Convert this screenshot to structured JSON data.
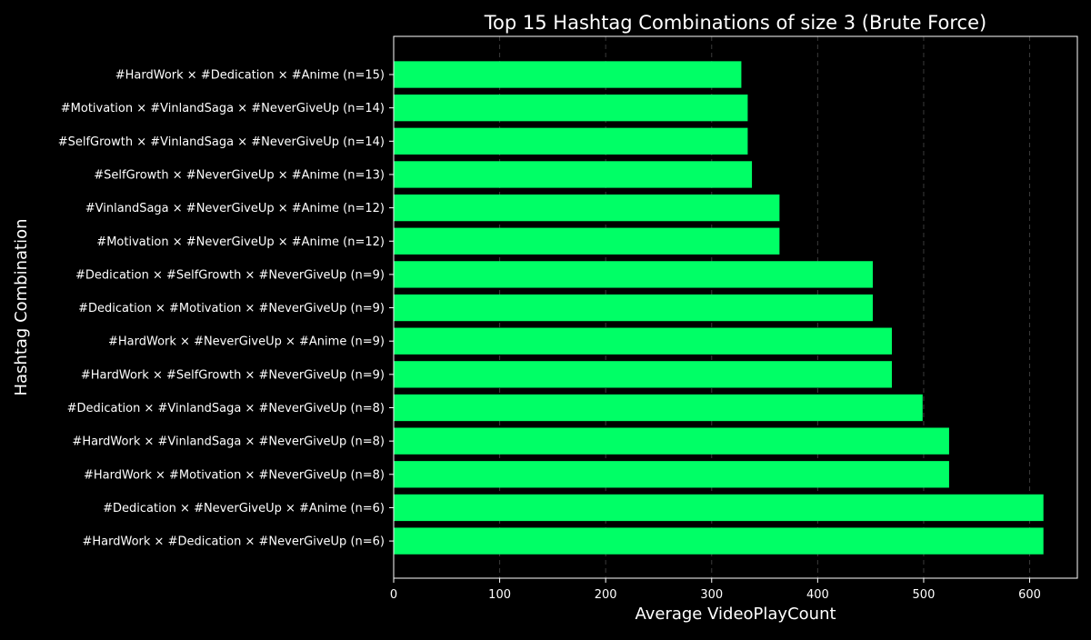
{
  "chart_data": {
    "type": "bar",
    "orientation": "horizontal",
    "title": "Top 15 Hashtag Combinations of size 3 (Brute Force)",
    "xlabel": "Average VideoPlayCount",
    "ylabel": "Hashtag Combination",
    "xlim": [
      0,
      645
    ],
    "xticks": [
      0,
      100,
      200,
      300,
      400,
      500,
      600
    ],
    "grid": {
      "x": true,
      "y": false,
      "style": "dashed"
    },
    "bar_color": "#00ff66",
    "background_color": "#000000",
    "text_color": "#ffffff",
    "categories": [
      "#HardWork × #Dedication × #Anime (n=15)",
      "#Motivation × #VinlandSaga × #NeverGiveUp (n=14)",
      "#SelfGrowth × #VinlandSaga × #NeverGiveUp (n=14)",
      "#SelfGrowth × #NeverGiveUp × #Anime (n=13)",
      "#VinlandSaga × #NeverGiveUp × #Anime (n=12)",
      "#Motivation × #NeverGiveUp × #Anime (n=12)",
      "#Dedication × #SelfGrowth × #NeverGiveUp (n=9)",
      "#Dedication × #Motivation × #NeverGiveUp (n=9)",
      "#HardWork × #NeverGiveUp × #Anime (n=9)",
      "#HardWork × #SelfGrowth × #NeverGiveUp (n=9)",
      "#Dedication × #VinlandSaga × #NeverGiveUp (n=8)",
      "#HardWork × #VinlandSaga × #NeverGiveUp (n=8)",
      "#HardWork × #Motivation × #NeverGiveUp (n=8)",
      "#Dedication × #NeverGiveUp × #Anime (n=6)",
      "#HardWork × #Dedication × #NeverGiveUp (n=6)"
    ],
    "values": [
      328,
      334,
      334,
      338,
      364,
      364,
      452,
      452,
      470,
      470,
      499,
      524,
      524,
      613,
      613
    ]
  }
}
